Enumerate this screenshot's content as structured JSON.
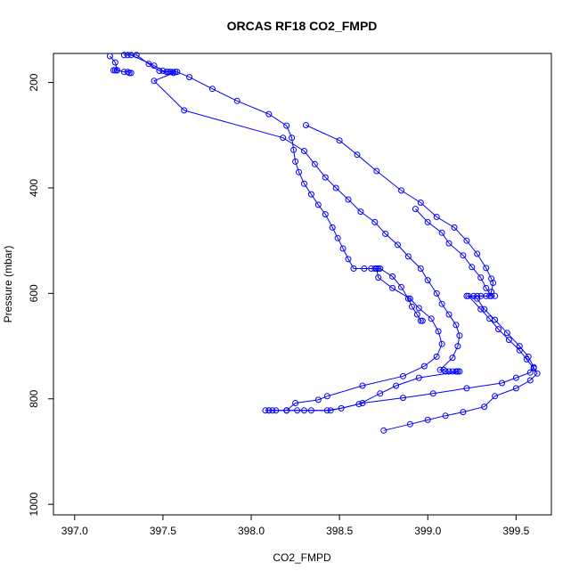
{
  "chart_data": {
    "type": "scatter",
    "title": "ORCAS RF18 CO2_FMPD",
    "xlabel": "CO2_FMPD",
    "ylabel": "Pressure (mbar)",
    "xlim": [
      396.88,
      399.7
    ],
    "ylim": [
      1020,
      145
    ],
    "y_reversed": true,
    "grid": false,
    "legend": "none",
    "x_ticks": [
      397.0,
      397.5,
      398.0,
      398.5,
      399.0,
      399.5
    ],
    "x_tick_labels": [
      "397.0",
      "397.5",
      "398.0",
      "398.5",
      "399.0",
      "399.5"
    ],
    "y_ticks": [
      200,
      400,
      600,
      800,
      1000
    ],
    "y_tick_labels": [
      "200",
      "400",
      "600",
      "800",
      "1000"
    ],
    "color": "#0000ff",
    "series": [
      {
        "points": [
          [
            397.28,
            148
          ],
          [
            397.32,
            148
          ],
          [
            397.45,
            168
          ],
          [
            397.5,
            178
          ],
          [
            397.53,
            180
          ],
          [
            397.55,
            180
          ],
          [
            397.57,
            180
          ],
          [
            397.58,
            180
          ],
          [
            397.65,
            190
          ],
          [
            397.78,
            212
          ],
          [
            397.92,
            235
          ],
          [
            398.1,
            260
          ],
          [
            398.2,
            282
          ],
          [
            398.23,
            305
          ],
          [
            398.24,
            328
          ],
          [
            398.25,
            350
          ],
          [
            398.27,
            370
          ],
          [
            398.3,
            392
          ],
          [
            398.34,
            412
          ],
          [
            398.38,
            432
          ],
          [
            398.42,
            450
          ],
          [
            398.46,
            475
          ],
          [
            398.49,
            495
          ],
          [
            398.52,
            515
          ],
          [
            398.55,
            535
          ],
          [
            398.58,
            553
          ],
          [
            398.64,
            553
          ],
          [
            398.7,
            553
          ],
          [
            398.72,
            553
          ],
          [
            398.73,
            553
          ],
          [
            398.8,
            568
          ],
          [
            398.85,
            588
          ],
          [
            398.89,
            610
          ],
          [
            398.91,
            625
          ],
          [
            398.94,
            640
          ],
          [
            398.96,
            652
          ],
          [
            398.97,
            652
          ]
        ]
      },
      {
        "points": [
          [
            397.2,
            150
          ],
          [
            397.23,
            162
          ],
          [
            397.24,
            177
          ],
          [
            397.23,
            177
          ],
          [
            397.22,
            177
          ],
          [
            397.24,
            177
          ],
          [
            397.28,
            180
          ],
          [
            397.3,
            180
          ],
          [
            397.32,
            182
          ],
          [
            397.31,
            182
          ]
        ]
      },
      {
        "points": [
          [
            397.3,
            148
          ],
          [
            397.35,
            148
          ],
          [
            397.42,
            165
          ],
          [
            397.48,
            178
          ],
          [
            397.52,
            180
          ],
          [
            397.54,
            180
          ],
          [
            397.56,
            182
          ],
          [
            397.45,
            197
          ],
          [
            397.62,
            253
          ],
          [
            398.18,
            305
          ],
          [
            398.3,
            330
          ],
          [
            398.36,
            355
          ],
          [
            398.42,
            380
          ],
          [
            398.48,
            400
          ],
          [
            398.55,
            422
          ],
          [
            398.62,
            445
          ],
          [
            398.7,
            465
          ],
          [
            398.76,
            487
          ],
          [
            398.83,
            508
          ],
          [
            398.89,
            530
          ],
          [
            398.96,
            553
          ],
          [
            399.0,
            575
          ],
          [
            399.05,
            600
          ],
          [
            399.08,
            620
          ],
          [
            399.12,
            640
          ],
          [
            399.16,
            660
          ],
          [
            399.18,
            680
          ],
          [
            399.17,
            700
          ],
          [
            399.14,
            722
          ],
          [
            399.07,
            745
          ],
          [
            399.09,
            745
          ],
          [
            399.1,
            748
          ],
          [
            399.12,
            748
          ],
          [
            399.14,
            748
          ],
          [
            399.16,
            748
          ],
          [
            399.17,
            748
          ],
          [
            399.18,
            748
          ],
          [
            398.95,
            760
          ],
          [
            398.82,
            775
          ],
          [
            398.73,
            790
          ],
          [
            398.61,
            810
          ],
          [
            398.45,
            822
          ],
          [
            398.3,
            822
          ],
          [
            398.2,
            822
          ],
          [
            398.12,
            822
          ],
          [
            398.08,
            822
          ],
          [
            398.1,
            822
          ],
          [
            398.14,
            822
          ],
          [
            398.2,
            822
          ],
          [
            398.25,
            808
          ],
          [
            398.38,
            802
          ],
          [
            398.43,
            795
          ],
          [
            398.63,
            775
          ],
          [
            398.86,
            757
          ],
          [
            398.98,
            738
          ],
          [
            399.05,
            720
          ],
          [
            399.08,
            696
          ],
          [
            399.06,
            672
          ],
          [
            399.02,
            648
          ],
          [
            398.95,
            628
          ],
          [
            398.9,
            610
          ],
          [
            398.8,
            590
          ],
          [
            398.72,
            570
          ],
          [
            398.71,
            553
          ],
          [
            398.68,
            553
          ]
        ]
      },
      {
        "points": [
          [
            398.31,
            281
          ],
          [
            398.5,
            310
          ],
          [
            398.6,
            337
          ],
          [
            398.71,
            368
          ],
          [
            398.85,
            405
          ],
          [
            398.96,
            428
          ],
          [
            399.05,
            455
          ],
          [
            399.15,
            475
          ],
          [
            399.22,
            500
          ],
          [
            399.28,
            525
          ],
          [
            399.33,
            552
          ],
          [
            399.36,
            572
          ],
          [
            399.37,
            580
          ],
          [
            399.36,
            597
          ],
          [
            399.35,
            605
          ],
          [
            399.3,
            605
          ],
          [
            399.26,
            605
          ],
          [
            399.22,
            605
          ],
          [
            399.28,
            610
          ],
          [
            399.32,
            630
          ],
          [
            399.38,
            650
          ],
          [
            399.45,
            675
          ],
          [
            399.52,
            700
          ],
          [
            399.57,
            720
          ],
          [
            399.6,
            740
          ],
          [
            399.58,
            750
          ],
          [
            399.5,
            760
          ],
          [
            399.42,
            770
          ],
          [
            399.22,
            780
          ],
          [
            399.03,
            790
          ],
          [
            398.86,
            798
          ],
          [
            398.63,
            808
          ],
          [
            398.51,
            818
          ],
          [
            398.43,
            822
          ],
          [
            398.34,
            822
          ],
          [
            398.26,
            822
          ],
          [
            398.2,
            822
          ],
          [
            398.1,
            822
          ]
        ]
      },
      {
        "points": [
          [
            398.93,
            440
          ],
          [
            399.0,
            465
          ],
          [
            399.08,
            485
          ],
          [
            399.12,
            505
          ],
          [
            399.2,
            528
          ],
          [
            399.25,
            550
          ],
          [
            399.3,
            570
          ],
          [
            399.33,
            590
          ],
          [
            399.36,
            605
          ],
          [
            399.38,
            605
          ],
          [
            399.33,
            605
          ],
          [
            399.28,
            605
          ],
          [
            399.23,
            605
          ],
          [
            399.3,
            630
          ],
          [
            399.35,
            648
          ],
          [
            399.4,
            668
          ],
          [
            399.46,
            688
          ],
          [
            399.52,
            708
          ],
          [
            399.56,
            725
          ],
          [
            399.6,
            742
          ],
          [
            399.62,
            752
          ],
          [
            399.58,
            765
          ],
          [
            399.5,
            780
          ],
          [
            399.38,
            795
          ],
          [
            399.32,
            815
          ],
          [
            399.2,
            825
          ],
          [
            399.1,
            832
          ],
          [
            399.0,
            840
          ],
          [
            398.9,
            848
          ],
          [
            398.75,
            860
          ]
        ]
      }
    ]
  }
}
